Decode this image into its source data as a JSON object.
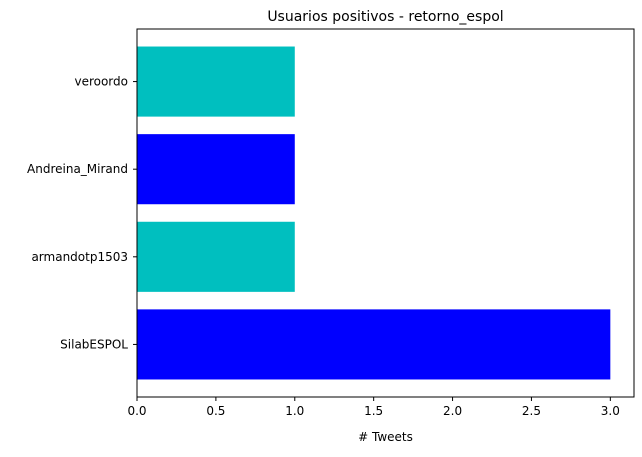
{
  "chart_data": {
    "type": "bar",
    "orientation": "horizontal",
    "title": "Usuarios positivos - retorno_espol",
    "xlabel": "# Tweets",
    "ylabel": "",
    "categories": [
      "SilabESPOL",
      "armandotp1503",
      "Andreina_Mirand",
      "veroordo"
    ],
    "values": [
      3,
      1,
      1,
      1
    ],
    "bar_colors": [
      "#0000ff",
      "#00bfbf",
      "#0000ff",
      "#00bfbf"
    ],
    "xlim": [
      0,
      3.15
    ],
    "xticks": [
      0.0,
      0.5,
      1.0,
      1.5,
      2.0,
      2.5,
      3.0
    ],
    "xtick_labels": [
      "0.0",
      "0.5",
      "1.0",
      "1.5",
      "2.0",
      "2.5",
      "3.0"
    ],
    "grid": false,
    "legend": "none"
  }
}
